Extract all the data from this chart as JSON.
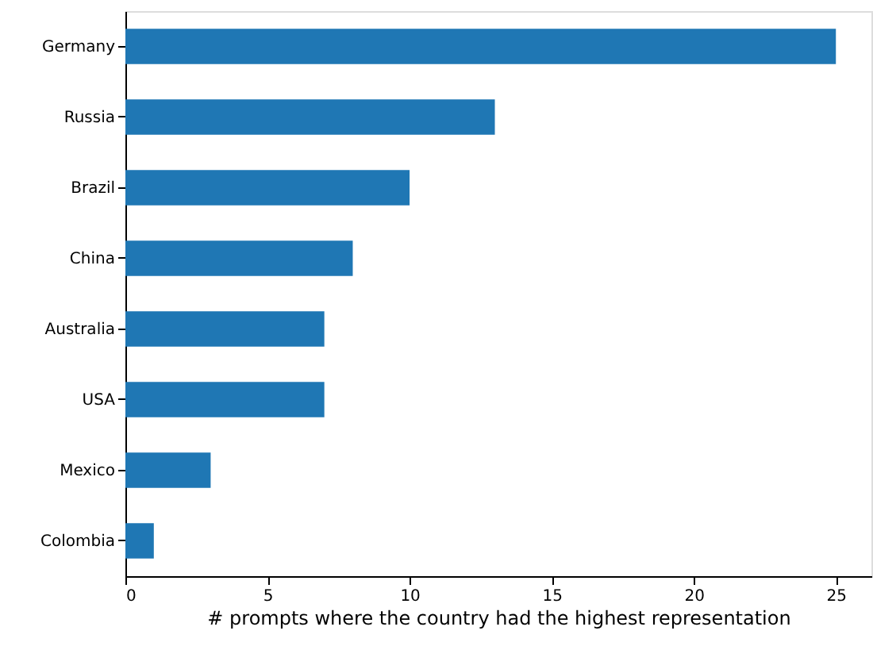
{
  "chart_data": {
    "type": "bar",
    "orientation": "horizontal",
    "xlabel": "# prompts where the country had the highest representation",
    "categories": [
      "Germany",
      "Russia",
      "Brazil",
      "China",
      "Australia",
      "USA",
      "Mexico",
      "Colombia"
    ],
    "values": [
      25,
      13,
      10,
      8,
      7,
      7,
      3,
      1
    ],
    "color": "#1f77b4",
    "xlim": [
      0,
      26.25
    ],
    "xticks": [
      0,
      5,
      10,
      15,
      20,
      25
    ],
    "grid": false
  }
}
